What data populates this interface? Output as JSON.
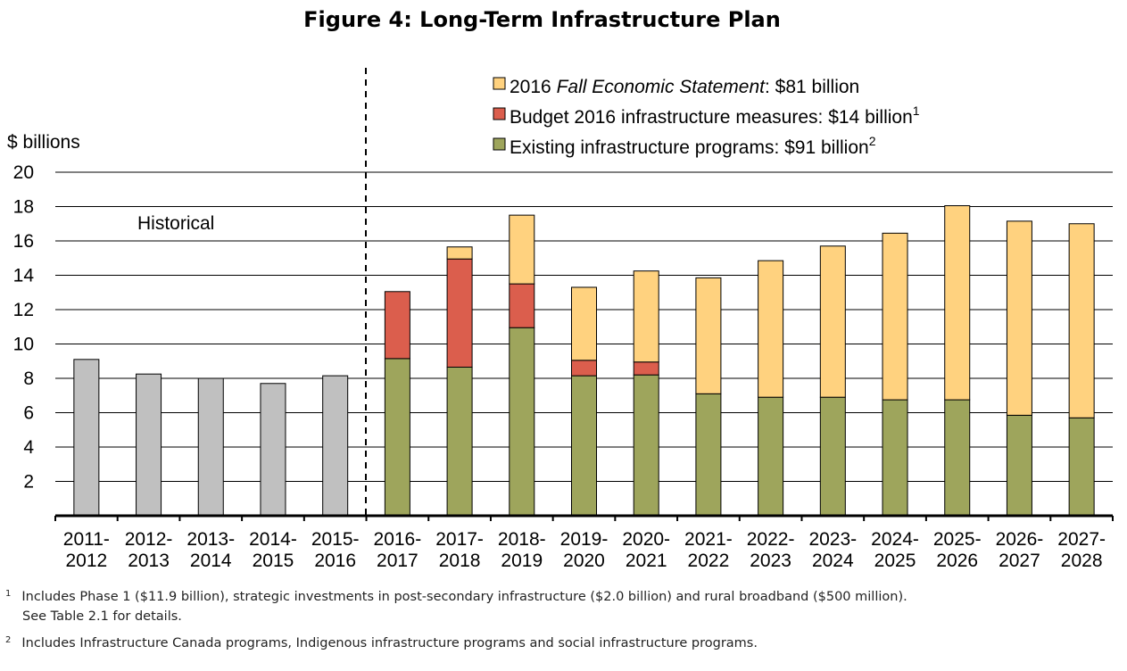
{
  "figure_title": "Figure 4: Long-Term Infrastructure Plan",
  "chart_data": {
    "type": "bar",
    "stacked": true,
    "ylabel": "$ billions",
    "ylim": [
      0,
      20
    ],
    "yticks": [
      2,
      4,
      6,
      8,
      10,
      12,
      14,
      16,
      18,
      20
    ],
    "grid": true,
    "legend_position": "top-right",
    "historical_label": "Historical",
    "categories": [
      [
        "2011-",
        "2012"
      ],
      [
        "2012-",
        "2013"
      ],
      [
        "2013-",
        "2014"
      ],
      [
        "2014-",
        "2015"
      ],
      [
        "2015-",
        "2016"
      ],
      [
        "2016-",
        "2017"
      ],
      [
        "2017-",
        "2018"
      ],
      [
        "2018-",
        "2019"
      ],
      [
        "2019-",
        "2020"
      ],
      [
        "2020-",
        "2021"
      ],
      [
        "2021-",
        "2022"
      ],
      [
        "2022-",
        "2023"
      ],
      [
        "2023-",
        "2024"
      ],
      [
        "2024-",
        "2025"
      ],
      [
        "2025-",
        "2026"
      ],
      [
        "2026-",
        "2027"
      ],
      [
        "2027-",
        "2028"
      ]
    ],
    "historical": {
      "color": "#c0c0c0",
      "values": [
        9.1,
        8.25,
        8.0,
        7.7,
        8.15,
        null,
        null,
        null,
        null,
        null,
        null,
        null,
        null,
        null,
        null,
        null,
        null
      ]
    },
    "series": [
      {
        "name": "Existing infrastructure programs: $91 billion",
        "legend": {
          "pre": "Existing infrastructure programs: $91 billion",
          "italic": "",
          "post": "",
          "sup": "2"
        },
        "color": "#9ea55c",
        "values": [
          null,
          null,
          null,
          null,
          null,
          9.15,
          8.65,
          10.95,
          8.15,
          8.2,
          7.1,
          6.9,
          6.9,
          6.75,
          6.75,
          5.85,
          5.7
        ]
      },
      {
        "name": "Budget 2016 infrastructure measures: $14 billion",
        "legend": {
          "pre": "Budget 2016 infrastructure measures: $14 billion",
          "italic": "",
          "post": "",
          "sup": "1"
        },
        "color": "#db5e4d",
        "values": [
          null,
          null,
          null,
          null,
          null,
          3.9,
          6.3,
          2.55,
          0.9,
          0.75,
          0,
          0,
          0,
          0,
          0,
          0,
          0
        ]
      },
      {
        "name": "2016 Fall Economic Statement: $81 billion",
        "legend": {
          "pre": "2016 ",
          "italic": "Fall Economic Statement",
          "post": ": $81 billion",
          "sup": ""
        },
        "color": "#ffd27f",
        "values": [
          null,
          null,
          null,
          null,
          null,
          0,
          0.7,
          4.0,
          4.25,
          5.3,
          6.75,
          7.95,
          8.8,
          9.7,
          11.3,
          11.3,
          11.3
        ]
      }
    ]
  },
  "footnotes": [
    {
      "mark": "1",
      "lines": [
        "Includes Phase 1 ($11.9 billion), strategic investments in post-secondary infrastructure ($2.0 billion) and rural broadband ($500 million).",
        "See Table 2.1 for details."
      ]
    },
    {
      "mark": "2",
      "lines": [
        "Includes Infrastructure Canada programs, Indigenous infrastructure programs and social infrastructure programs."
      ]
    }
  ]
}
